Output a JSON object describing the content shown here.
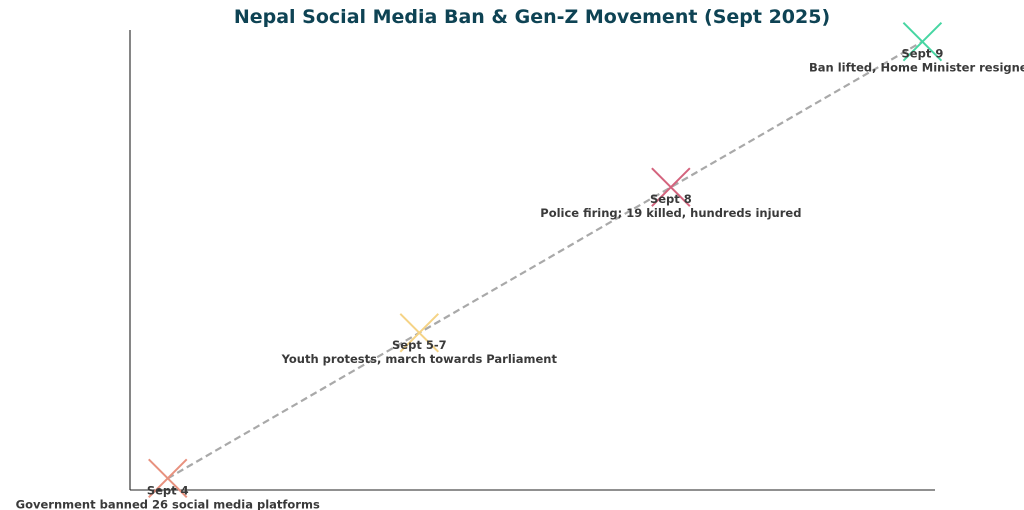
{
  "chart_data": {
    "type": "scatter",
    "title": "Nepal Social Media Ban & Gen-Z Movement (Sept 2025)",
    "xlabel": "",
    "ylabel": "",
    "grid": false,
    "x": [
      0,
      1,
      2,
      3
    ],
    "y": [
      0,
      1,
      2,
      3
    ],
    "xlim": [
      -0.15,
      3.05
    ],
    "ylim": [
      -0.08,
      3.08
    ],
    "marker": "x",
    "connector": "dashed",
    "connector_color": "#a9a9a9",
    "points": [
      {
        "date": "Sept 4",
        "description": "Government banned 26 social media platforms",
        "color": "#e8917e"
      },
      {
        "date": "Sept 5-7",
        "description": "Youth protests, march towards Parliament",
        "color": "#f5d385"
      },
      {
        "date": "Sept 8",
        "description": "Police firing; 19 killed, hundreds injured",
        "color": "#d4637d"
      },
      {
        "date": "Sept 9",
        "description": "Ban lifted, Home Minister resigned",
        "color": "#46d6a2"
      }
    ]
  }
}
